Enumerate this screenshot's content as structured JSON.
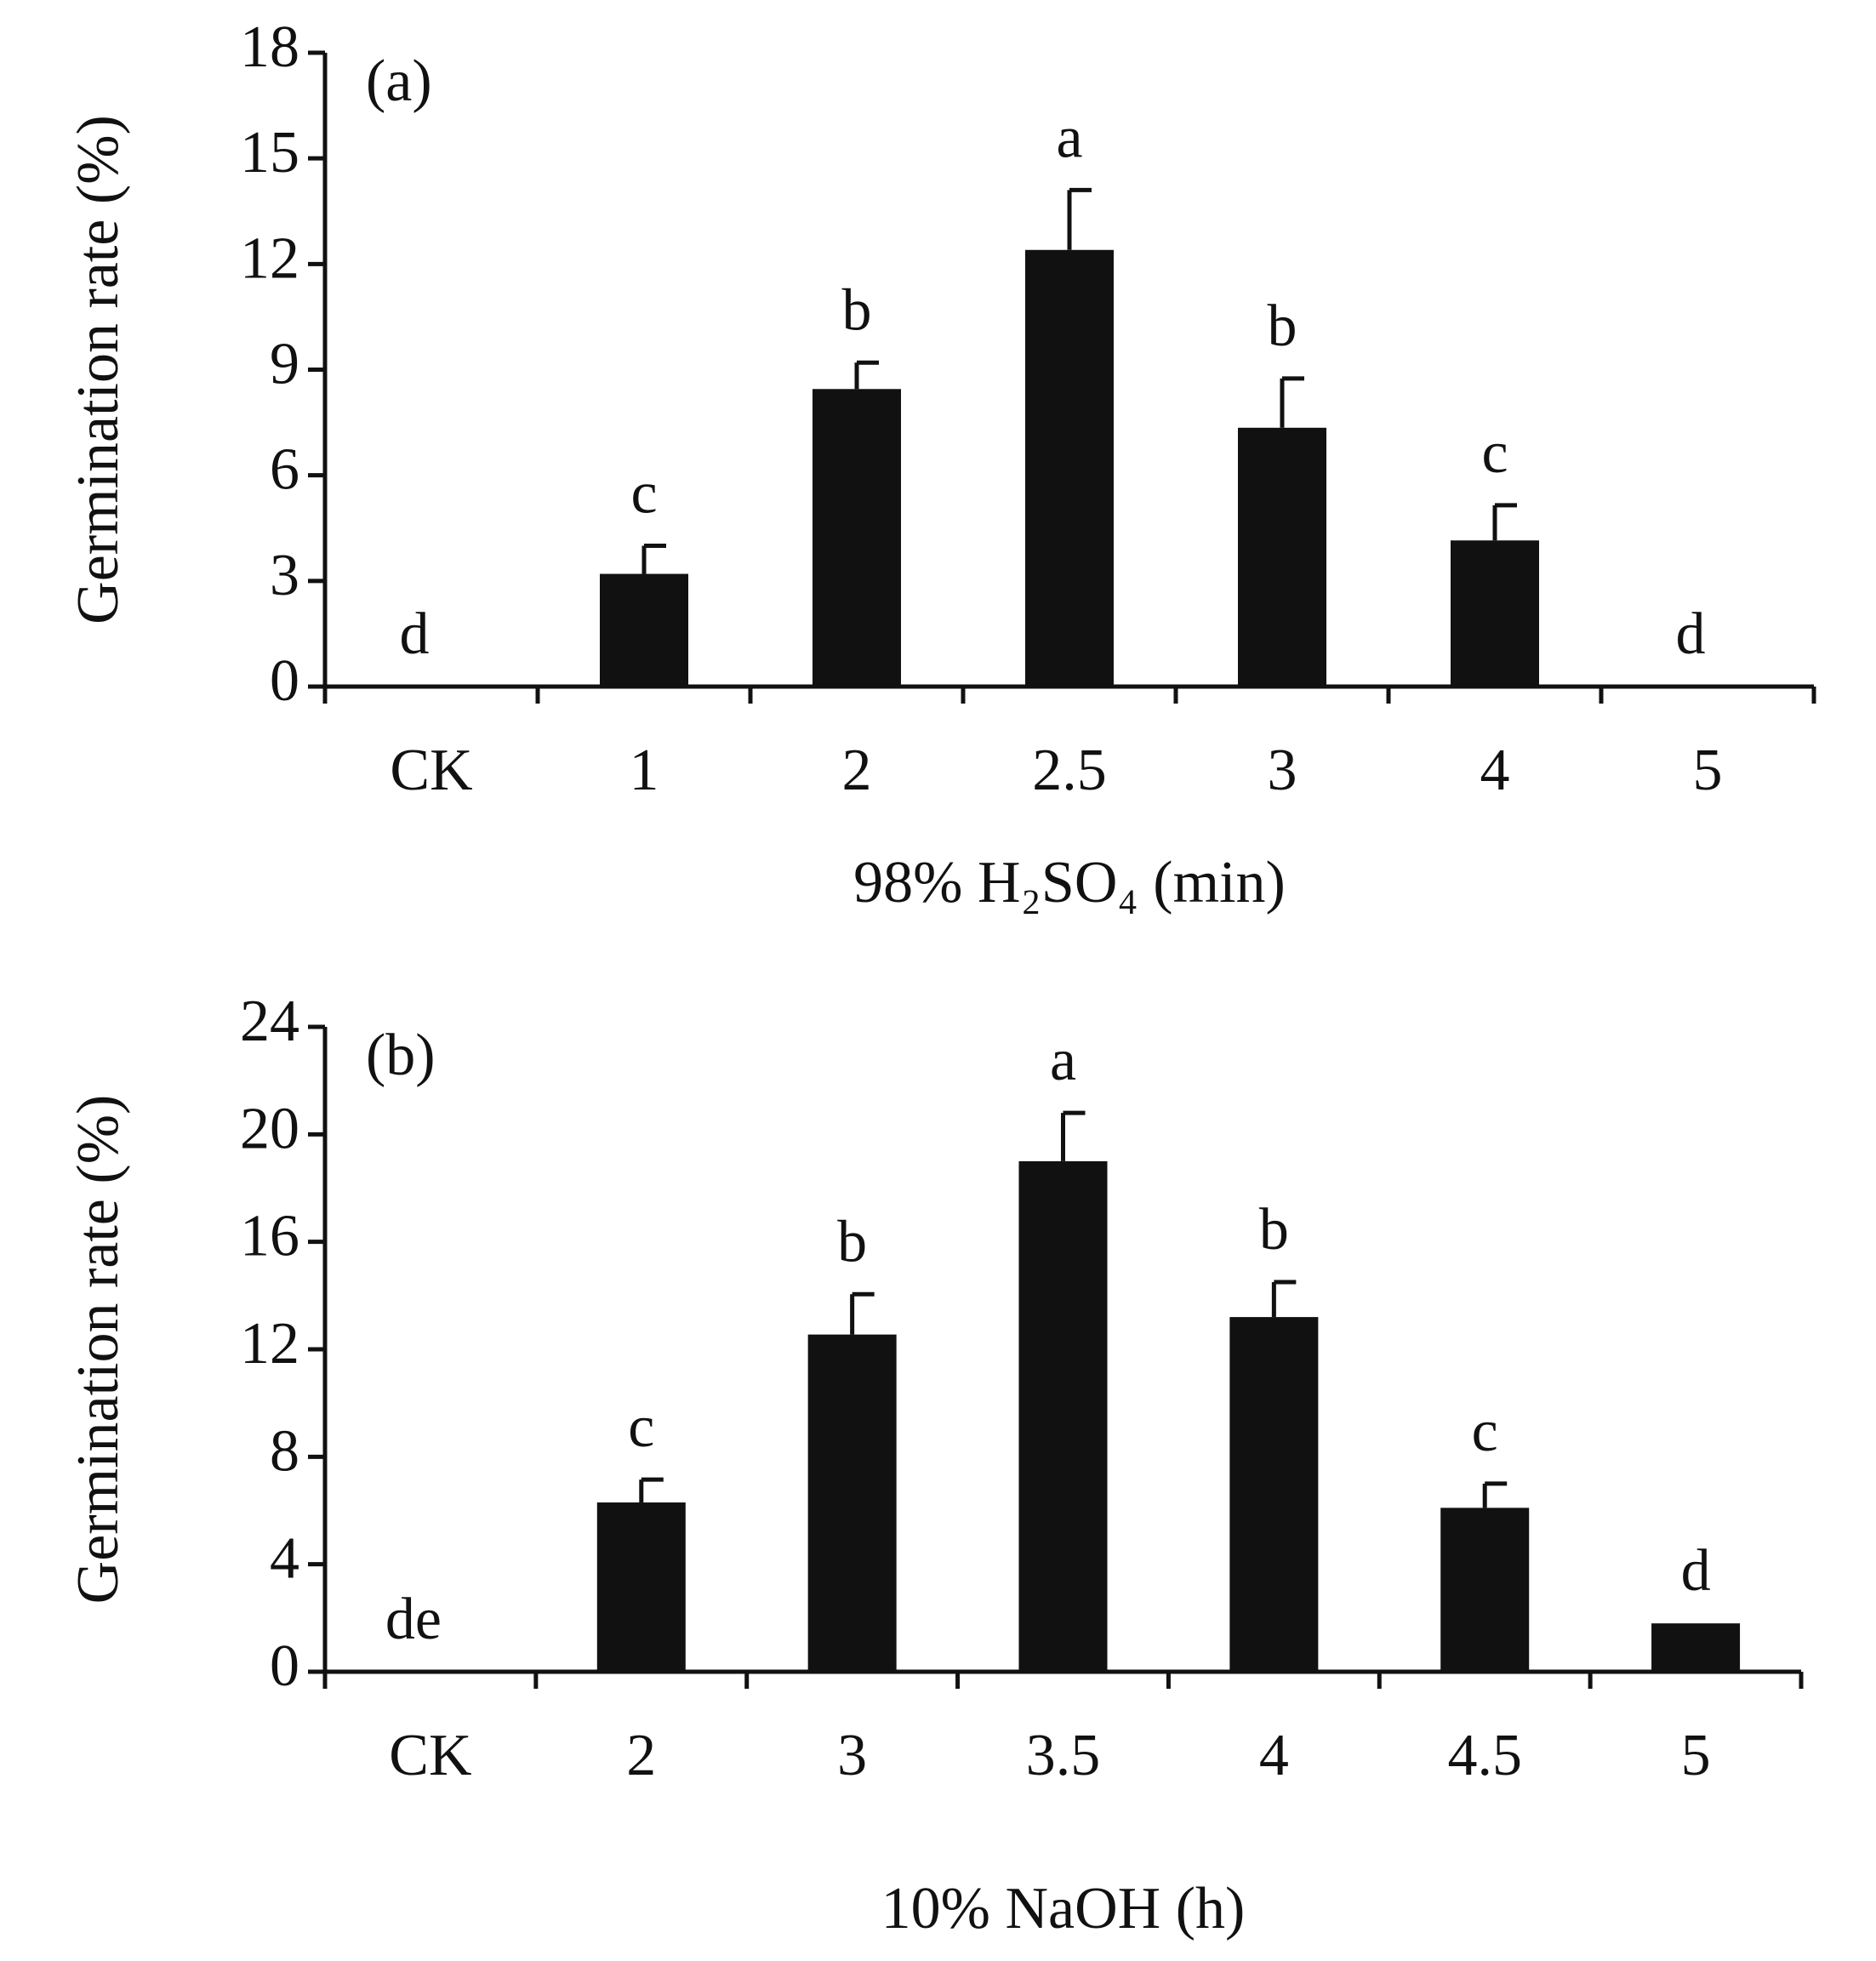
{
  "chart_data": [
    {
      "type": "bar",
      "panel": "(a)",
      "y_label": "Germination rate (%)",
      "x_label": "98% H₂SO₄ (min)",
      "categories": [
        "CK",
        "1",
        "2",
        "2.5",
        "3",
        "4",
        "5"
      ],
      "values": [
        0,
        3.2,
        8.45,
        12.4,
        7.35,
        4.15,
        0
      ],
      "errors": [
        null,
        0.8,
        0.75,
        1.7,
        1.4,
        1.0,
        null
      ],
      "letters": [
        "d",
        "c",
        "b",
        "a",
        "b",
        "c",
        "d"
      ],
      "color": "#111111",
      "ylim": [
        0,
        18
      ],
      "yticks": [
        0,
        3,
        6,
        9,
        12,
        15,
        18
      ]
    },
    {
      "type": "bar",
      "panel": "(b)",
      "y_label": "Germination rate (%)",
      "x_label": "10% NaOH (h)",
      "categories": [
        "CK",
        "2",
        "3",
        "3.5",
        "4",
        "4.5",
        "5"
      ],
      "values": [
        0,
        6.3,
        12.55,
        19.0,
        13.2,
        6.1,
        1.8
      ],
      "errors": [
        null,
        0.85,
        1.5,
        1.8,
        1.3,
        0.9,
        null
      ],
      "letters": [
        "de",
        "c",
        "b",
        "a",
        "b",
        "c",
        "d"
      ],
      "color": "#111111",
      "ylim": [
        0,
        24
      ],
      "yticks": [
        0,
        4,
        8,
        12,
        16,
        20,
        24
      ]
    }
  ]
}
